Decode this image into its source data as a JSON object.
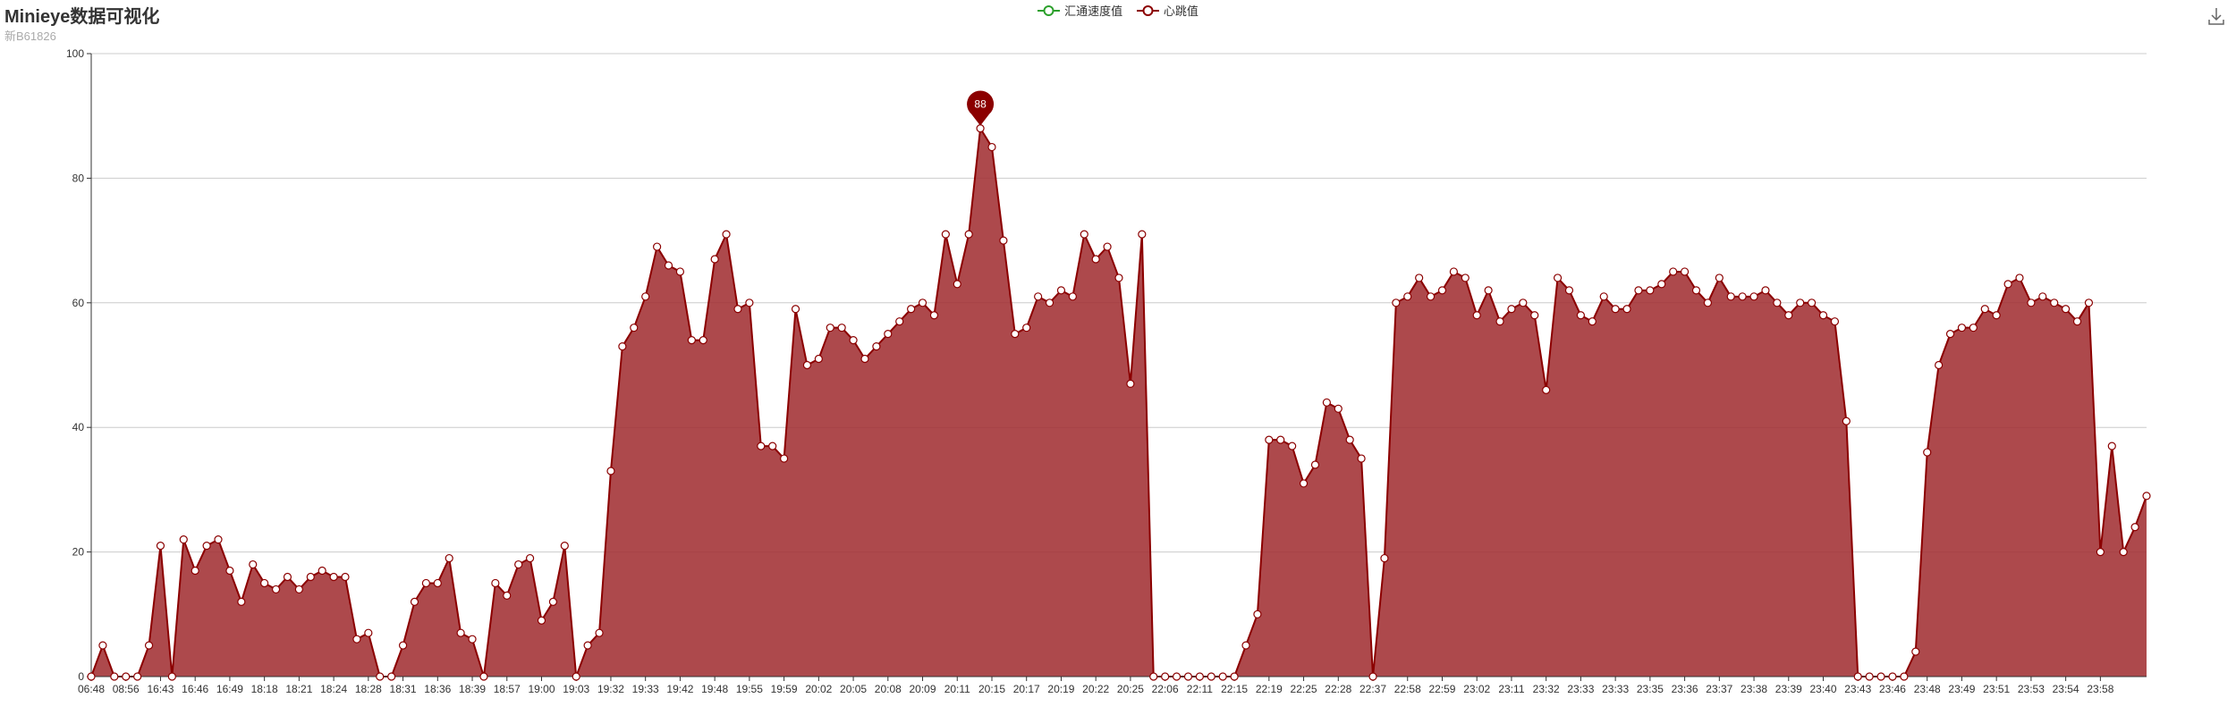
{
  "header": {
    "title": "Minieye数据可视化",
    "subtitle": "新B61826"
  },
  "legend": [
    {
      "name": "汇通速度值",
      "color": "#2ca02c"
    },
    {
      "name": "心跳值",
      "color": "#8b0000"
    }
  ],
  "toolbox": {
    "download_icon": "download-icon"
  },
  "colors": {
    "series": "#8b0000",
    "area": "#a23033",
    "grid": "#cccccc",
    "axis": "#333333",
    "marker": "#8b0000"
  },
  "chart_data": {
    "type": "area",
    "ylim": [
      0,
      100
    ],
    "yticks": [
      0,
      20,
      40,
      60,
      80,
      100
    ],
    "xtick_labels": [
      "06:48",
      "08:56",
      "16:43",
      "16:46",
      "16:49",
      "18:18",
      "18:21",
      "18:24",
      "18:28",
      "18:31",
      "18:36",
      "18:39",
      "18:57",
      "19:00",
      "19:03",
      "19:32",
      "19:33",
      "19:42",
      "19:48",
      "19:55",
      "19:59",
      "20:02",
      "20:05",
      "20:08",
      "20:09",
      "20:11",
      "20:15",
      "20:17",
      "20:19",
      "20:22",
      "20:25",
      "22:06",
      "22:11",
      "22:15",
      "22:19",
      "22:25",
      "22:28",
      "22:37",
      "22:58",
      "22:59",
      "23:02",
      "23:11",
      "23:32",
      "23:33",
      "23:33",
      "23:35",
      "23:36",
      "23:37",
      "23:38",
      "23:39",
      "23:40",
      "23:43",
      "23:46",
      "23:48",
      "23:49",
      "23:51",
      "23:53",
      "23:54",
      "23:58"
    ],
    "series": [
      {
        "name": "心跳值",
        "values": [
          0,
          5,
          0,
          0,
          0,
          5,
          21,
          0,
          22,
          17,
          21,
          22,
          17,
          12,
          18,
          15,
          14,
          16,
          14,
          16,
          17,
          16,
          16,
          6,
          7,
          0,
          0,
          5,
          12,
          15,
          15,
          19,
          7,
          6,
          0,
          15,
          13,
          18,
          19,
          9,
          12,
          21,
          0,
          5,
          7,
          33,
          53,
          56,
          61,
          69,
          66,
          65,
          54,
          54,
          67,
          71,
          59,
          60,
          37,
          37,
          35,
          59,
          50,
          51,
          56,
          56,
          54,
          51,
          53,
          55,
          57,
          59,
          60,
          58,
          71,
          63,
          71,
          88,
          85,
          70,
          55,
          56,
          61,
          60,
          62,
          61,
          71,
          67,
          69,
          64,
          47,
          71,
          0,
          0,
          0,
          0,
          0,
          0,
          0,
          0,
          5,
          10,
          38,
          38,
          37,
          31,
          34,
          44,
          43,
          38,
          35,
          0,
          19,
          60,
          61,
          64,
          61,
          62,
          65,
          64,
          58,
          62,
          57,
          59,
          60,
          58,
          46,
          64,
          62,
          58,
          57,
          61,
          59,
          59,
          62,
          62,
          63,
          65,
          65,
          62,
          60,
          64,
          61,
          61,
          61,
          62,
          60,
          58,
          60,
          60,
          58,
          57,
          41,
          0,
          0,
          0,
          0,
          0,
          4,
          36,
          50,
          55,
          56,
          56,
          59,
          58,
          63,
          64,
          60,
          61,
          60,
          59,
          57,
          60,
          20,
          37,
          20,
          24,
          29
        ]
      },
      {
        "name": "汇通速度值",
        "values": []
      }
    ],
    "markpoint": {
      "label": "88"
    }
  }
}
